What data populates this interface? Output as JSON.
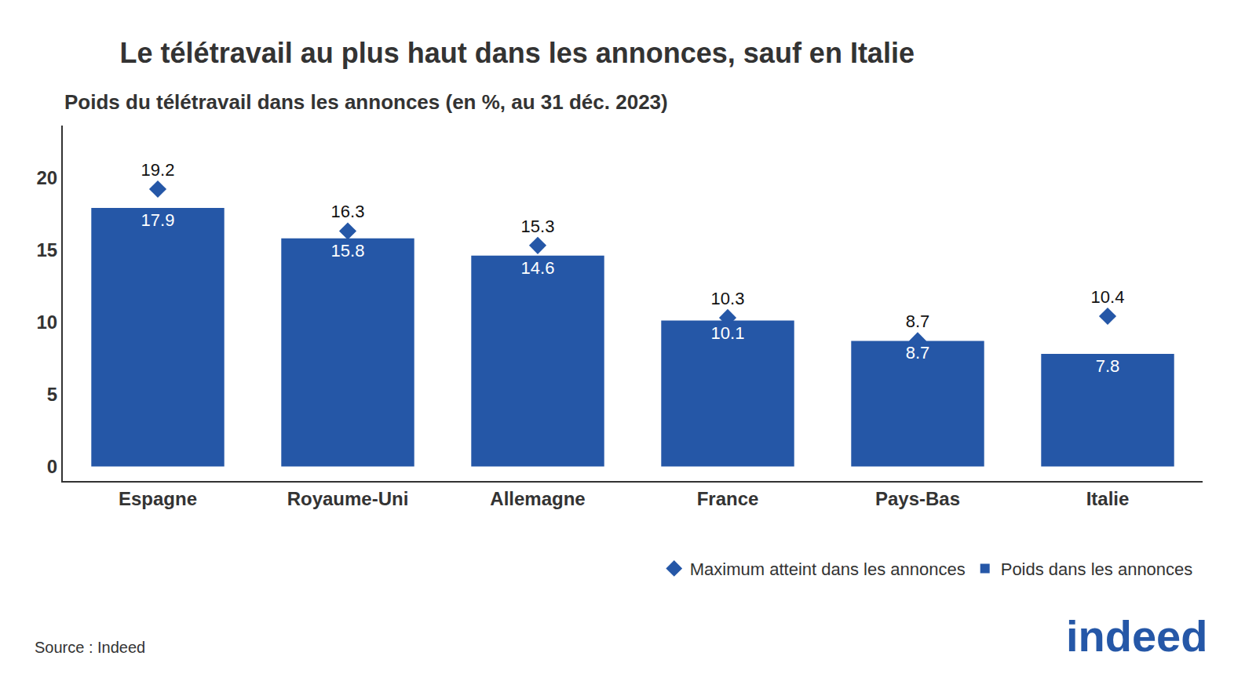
{
  "chart_data": {
    "type": "bar",
    "title": "Le télétravail au plus haut dans les annonces, sauf en Italie",
    "subtitle": "Poids du télétravail dans les annonces (en %, au 31 déc. 2023)",
    "source": "Source : Indeed",
    "logo": "indeed",
    "categories": [
      "Espagne",
      "Royaume-Uni",
      "Allemagne",
      "France",
      "Pays-Bas",
      "Italie"
    ],
    "series": [
      {
        "name": "Poids dans les annonces",
        "type": "bar",
        "color": "#2557a7",
        "values": [
          17.9,
          15.8,
          14.6,
          10.1,
          8.7,
          7.8
        ]
      },
      {
        "name": "Maximum atteint dans les annonces",
        "type": "scatter",
        "marker": "diamond",
        "color": "#2557a7",
        "values": [
          19.2,
          16.3,
          15.3,
          10.3,
          8.7,
          10.4
        ]
      }
    ],
    "ylim": [
      -1,
      23.6
    ],
    "yticks": [
      0,
      5,
      10,
      15,
      20
    ],
    "grid": false,
    "data_labels": true,
    "legend": "bottom right"
  }
}
